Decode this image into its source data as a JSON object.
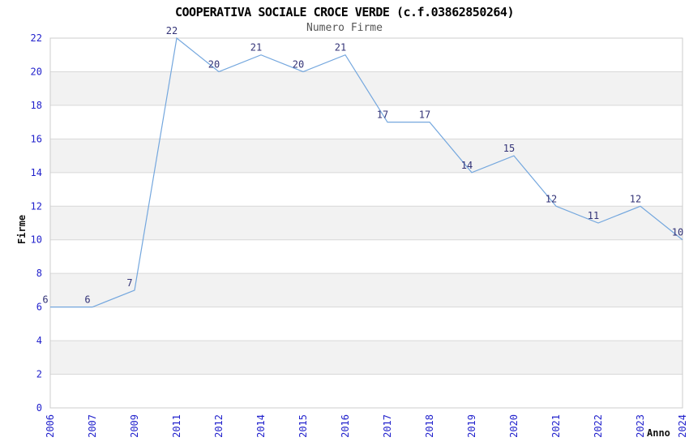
{
  "chart_data": {
    "type": "line",
    "title": "COOPERATIVA SOCIALE CROCE VERDE (c.f.03862850264)",
    "subtitle": "Numero Firme",
    "xlabel": "Anno",
    "ylabel": "Firme",
    "categories": [
      "2006",
      "2007",
      "2009",
      "2011",
      "2012",
      "2014",
      "2015",
      "2016",
      "2017",
      "2018",
      "2019",
      "2020",
      "2021",
      "2022",
      "2023",
      "2024"
    ],
    "values": [
      6,
      6,
      7,
      22,
      20,
      21,
      20,
      21,
      17,
      17,
      14,
      15,
      12,
      11,
      12,
      10
    ],
    "ylim": [
      0,
      22
    ],
    "ytick": 2,
    "grid": true,
    "legend": "none",
    "point_labels": true,
    "colors": {
      "line": "#74a7de",
      "point_label": "#333377",
      "tick_label": "#2222cc",
      "band": "#f2f2f2",
      "gridline": "#d8d8d8",
      "frame": "#cccccc",
      "title": "#000000",
      "subtitle": "#555555",
      "axis_title": "#111111"
    }
  }
}
